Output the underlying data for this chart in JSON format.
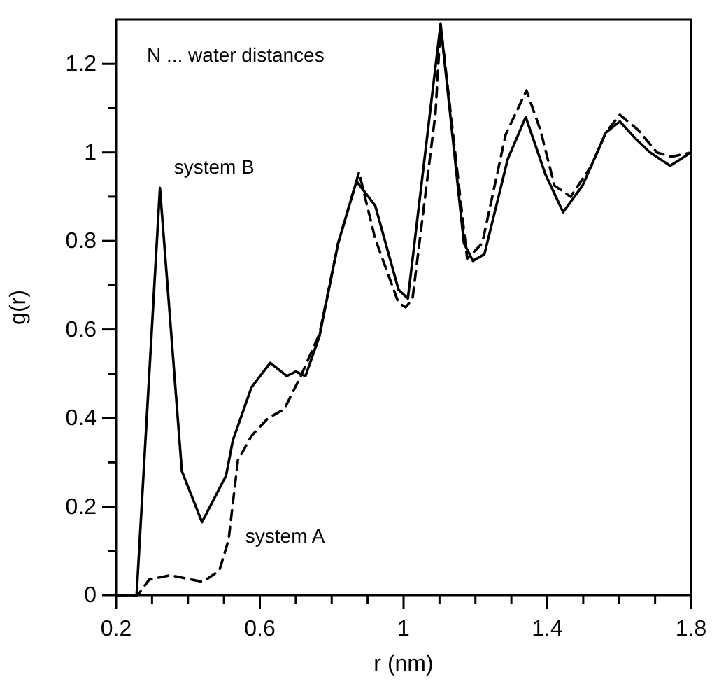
{
  "chart_data": {
    "type": "line",
    "xlabel": "r (nm)",
    "ylabel": "g(r)",
    "annotations": [
      "N ... water distances"
    ],
    "xlim": [
      0.2,
      1.8
    ],
    "ylim": [
      0,
      1.3
    ],
    "xticks": [
      0.2,
      {
        "value": 0.3,
        "label": null
      },
      {
        "value": 0.4,
        "label": null
      },
      {
        "value": 0.5,
        "label": null
      },
      0.6,
      {
        "value": 0.7,
        "label": null
      },
      {
        "value": 0.8,
        "label": null
      },
      {
        "value": 0.9,
        "label": null
      },
      1,
      {
        "value": 1.1,
        "label": null
      },
      {
        "value": 1.2,
        "label": null
      },
      {
        "value": 1.3,
        "label": null
      },
      1.4,
      {
        "value": 1.5,
        "label": null
      },
      {
        "value": 1.6,
        "label": null
      },
      {
        "value": 1.7,
        "label": null
      },
      1.8
    ],
    "yticks": [
      0,
      {
        "value": 0.1,
        "label": null
      },
      0.2,
      {
        "value": 0.3,
        "label": null
      },
      0.4,
      {
        "value": 0.5,
        "label": null
      },
      0.6,
      {
        "value": 0.7,
        "label": null
      },
      0.8,
      {
        "value": 0.9,
        "label": null
      },
      1,
      {
        "value": 1.1,
        "label": null
      },
      1.2
    ],
    "grid": false,
    "marker": "none",
    "series": [
      {
        "name": "system B",
        "color": "#000000",
        "line_style": "solid",
        "x": [
          0.2,
          0.257,
          0.322,
          0.383,
          0.439,
          0.506,
          0.525,
          0.577,
          0.629,
          0.675,
          0.7,
          0.727,
          0.766,
          0.818,
          0.869,
          0.921,
          0.986,
          1.012,
          1.103,
          1.168,
          1.193,
          1.225,
          1.29,
          1.34,
          1.395,
          1.444,
          1.498,
          1.563,
          1.602,
          1.647,
          1.686,
          1.742,
          1.8
        ],
        "values": [
          0,
          0,
          0.92,
          0.28,
          0.165,
          0.27,
          0.35,
          0.47,
          0.525,
          0.495,
          0.505,
          0.495,
          0.585,
          0.795,
          0.935,
          0.88,
          0.69,
          0.67,
          1.29,
          0.795,
          0.755,
          0.77,
          0.985,
          1.08,
          0.95,
          0.865,
          0.925,
          1.045,
          1.07,
          1.03,
          1.0,
          0.97,
          1.0
        ]
      },
      {
        "name": "system A",
        "color": "#000000",
        "line_style": "dashed",
        "x": [
          0.2,
          0.26,
          0.292,
          0.35,
          0.441,
          0.487,
          0.513,
          0.539,
          0.577,
          0.623,
          0.668,
          0.714,
          0.766,
          0.818,
          0.876,
          0.921,
          0.986,
          1.006,
          1.025,
          1.089,
          1.103,
          1.177,
          1.219,
          1.284,
          1.342,
          1.381,
          1.42,
          1.465,
          1.523,
          1.563,
          1.602,
          1.654,
          1.705,
          1.745,
          1.8
        ],
        "values": [
          0,
          0,
          0.035,
          0.045,
          0.03,
          0.055,
          0.125,
          0.305,
          0.36,
          0.4,
          0.42,
          0.495,
          0.59,
          0.795,
          0.955,
          0.805,
          0.66,
          0.65,
          0.67,
          1.09,
          1.29,
          0.76,
          0.795,
          1.04,
          1.14,
          1.05,
          0.925,
          0.9,
          0.97,
          1.045,
          1.085,
          1.05,
          1.0,
          0.99,
          1.0
        ]
      }
    ]
  }
}
